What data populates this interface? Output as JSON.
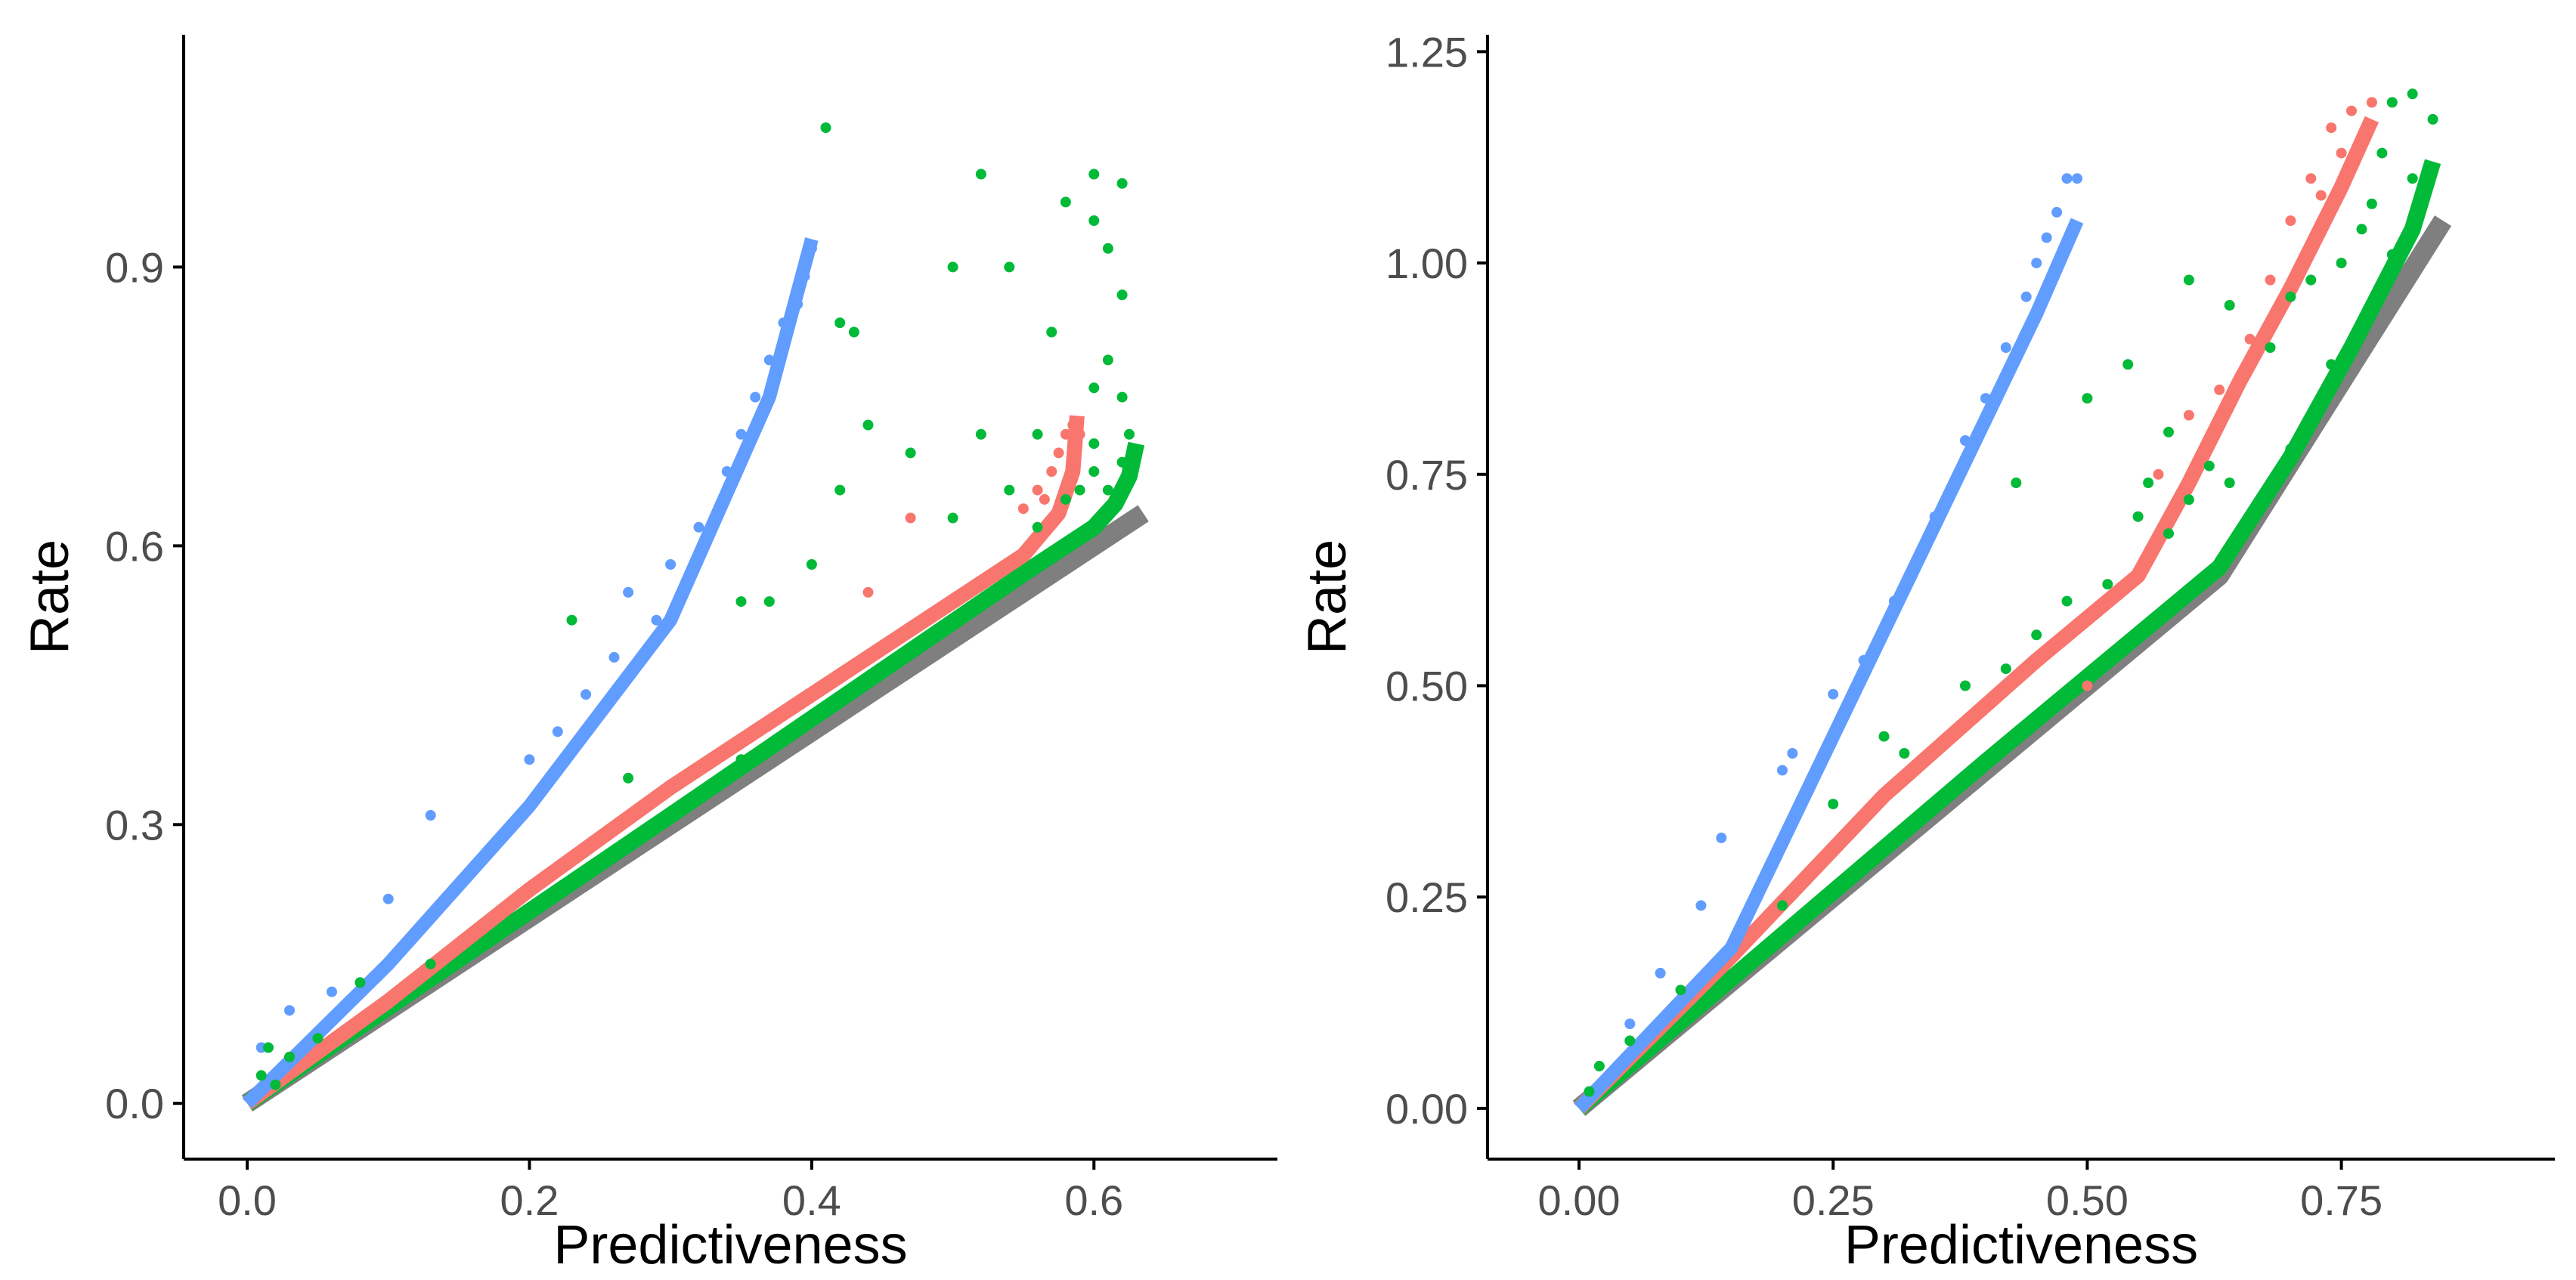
{
  "colors": {
    "blue": "#619cff",
    "red": "#f8766d",
    "green": "#00ba38",
    "gray": "#7f7f7f",
    "axis": "#000000",
    "tick_text": "#4d4d4d"
  },
  "chart_data": [
    {
      "type": "scatter",
      "title": "",
      "xlabel": "Predictiveness",
      "ylabel": "Rate",
      "xlim": [
        -0.045,
        0.73
      ],
      "ylim": [
        -0.06,
        1.15
      ],
      "x_ticks": [
        0.0,
        0.2,
        0.4,
        0.6
      ],
      "x_tick_labels": [
        "0.0",
        "0.2",
        "0.4",
        "0.6"
      ],
      "y_ticks": [
        0.0,
        0.3,
        0.6,
        0.9
      ],
      "y_tick_labels": [
        "0.0",
        "0.3",
        "0.6",
        "0.9"
      ],
      "grid": false,
      "series": [
        {
          "name": "gray",
          "kind": "line",
          "color": "gray",
          "points": [
            [
              0.0,
              0.0
            ],
            [
              0.635,
              0.635
            ]
          ]
        },
        {
          "name": "green",
          "kind": "line",
          "color": "green",
          "points": [
            [
              0.0,
              0.0
            ],
            [
              0.3,
              0.31
            ],
            [
              0.55,
              0.57
            ],
            [
              0.58,
              0.6
            ],
            [
              0.6,
              0.62
            ],
            [
              0.615,
              0.645
            ],
            [
              0.625,
              0.675
            ],
            [
              0.63,
              0.71
            ]
          ]
        },
        {
          "name": "red",
          "kind": "line",
          "color": "red",
          "points": [
            [
              0.0,
              0.0
            ],
            [
              0.1,
              0.11
            ],
            [
              0.2,
              0.23
            ],
            [
              0.3,
              0.34
            ],
            [
              0.4,
              0.44
            ],
            [
              0.5,
              0.54
            ],
            [
              0.55,
              0.59
            ],
            [
              0.575,
              0.635
            ],
            [
              0.585,
              0.68
            ],
            [
              0.588,
              0.74
            ]
          ]
        },
        {
          "name": "blue",
          "kind": "line",
          "color": "blue",
          "points": [
            [
              0.0,
              0.0
            ],
            [
              0.1,
              0.15
            ],
            [
              0.2,
              0.32
            ],
            [
              0.3,
              0.52
            ],
            [
              0.37,
              0.76
            ],
            [
              0.4,
              0.93
            ]
          ]
        },
        {
          "name": "blue-points",
          "kind": "points",
          "color": "blue",
          "points": [
            [
              0.01,
              0.06
            ],
            [
              0.03,
              0.1
            ],
            [
              0.06,
              0.12
            ],
            [
              0.1,
              0.22
            ],
            [
              0.13,
              0.31
            ],
            [
              0.17,
              0.27
            ],
            [
              0.2,
              0.37
            ],
            [
              0.22,
              0.4
            ],
            [
              0.24,
              0.44
            ],
            [
              0.26,
              0.48
            ],
            [
              0.27,
              0.55
            ],
            [
              0.29,
              0.52
            ],
            [
              0.3,
              0.58
            ],
            [
              0.32,
              0.62
            ],
            [
              0.34,
              0.68
            ],
            [
              0.35,
              0.72
            ],
            [
              0.36,
              0.76
            ],
            [
              0.37,
              0.8
            ],
            [
              0.38,
              0.84
            ],
            [
              0.39,
              0.86
            ],
            [
              0.395,
              0.89
            ],
            [
              0.4,
              0.92
            ]
          ]
        },
        {
          "name": "red-points",
          "kind": "points",
          "color": "red",
          "points": [
            [
              0.44,
              0.55
            ],
            [
              0.47,
              0.63
            ],
            [
              0.55,
              0.64
            ],
            [
              0.56,
              0.66
            ],
            [
              0.565,
              0.65
            ],
            [
              0.57,
              0.68
            ],
            [
              0.575,
              0.7
            ],
            [
              0.58,
              0.72
            ],
            [
              0.585,
              0.73
            ],
            [
              0.59,
              0.72
            ]
          ]
        },
        {
          "name": "green-points",
          "kind": "points",
          "color": "green",
          "points": [
            [
              0.41,
              1.05
            ],
            [
              0.52,
              1.0
            ],
            [
              0.6,
              1.0
            ],
            [
              0.62,
              0.99
            ],
            [
              0.58,
              0.97
            ],
            [
              0.6,
              0.95
            ],
            [
              0.61,
              0.92
            ],
            [
              0.62,
              0.87
            ],
            [
              0.5,
              0.9
            ],
            [
              0.54,
              0.9
            ],
            [
              0.42,
              0.84
            ],
            [
              0.43,
              0.83
            ],
            [
              0.57,
              0.83
            ],
            [
              0.61,
              0.8
            ],
            [
              0.6,
              0.77
            ],
            [
              0.62,
              0.76
            ],
            [
              0.44,
              0.73
            ],
            [
              0.52,
              0.72
            ],
            [
              0.56,
              0.72
            ],
            [
              0.47,
              0.7
            ],
            [
              0.6,
              0.71
            ],
            [
              0.42,
              0.66
            ],
            [
              0.54,
              0.66
            ],
            [
              0.58,
              0.65
            ],
            [
              0.5,
              0.63
            ],
            [
              0.56,
              0.62
            ],
            [
              0.4,
              0.58
            ],
            [
              0.62,
              0.69
            ],
            [
              0.625,
              0.72
            ],
            [
              0.63,
              0.7
            ],
            [
              0.6,
              0.68
            ],
            [
              0.59,
              0.66
            ],
            [
              0.61,
              0.66
            ],
            [
              0.35,
              0.54
            ],
            [
              0.37,
              0.54
            ],
            [
              0.23,
              0.52
            ],
            [
              0.27,
              0.35
            ],
            [
              0.35,
              0.37
            ],
            [
              0.05,
              0.07
            ],
            [
              0.01,
              0.03
            ],
            [
              0.02,
              0.02
            ],
            [
              0.015,
              0.06
            ],
            [
              0.03,
              0.05
            ],
            [
              0.08,
              0.13
            ],
            [
              0.13,
              0.15
            ]
          ]
        }
      ]
    },
    {
      "type": "scatter",
      "title": "",
      "xlabel": "Predictiveness",
      "ylabel": "Rate",
      "xlim": [
        -0.09,
        0.96
      ],
      "ylim": [
        -0.06,
        1.27
      ],
      "x_ticks": [
        0.0,
        0.25,
        0.5,
        0.75
      ],
      "x_tick_labels": [
        "0.00",
        "0.25",
        "0.50",
        "0.75"
      ],
      "y_ticks": [
        0.0,
        0.25,
        0.5,
        0.75,
        1.0,
        1.25
      ],
      "y_tick_labels": [
        "0.00",
        "0.25",
        "0.50",
        "0.75",
        "1.00",
        "1.25"
      ],
      "grid": false,
      "series": [
        {
          "name": "gray",
          "kind": "line",
          "color": "gray",
          "points": [
            [
              0.0,
              0.0
            ],
            [
              0.63,
              0.63
            ],
            [
              0.85,
              1.05
            ]
          ]
        },
        {
          "name": "green",
          "kind": "line",
          "color": "green",
          "points": [
            [
              0.0,
              0.0
            ],
            [
              0.4,
              0.41
            ],
            [
              0.63,
              0.64
            ],
            [
              0.7,
              0.77
            ],
            [
              0.76,
              0.9
            ],
            [
              0.82,
              1.04
            ],
            [
              0.84,
              1.12
            ]
          ]
        },
        {
          "name": "red",
          "kind": "line",
          "color": "red",
          "points": [
            [
              0.0,
              0.0
            ],
            [
              0.15,
              0.18
            ],
            [
              0.3,
              0.37
            ],
            [
              0.45,
              0.53
            ],
            [
              0.55,
              0.63
            ],
            [
              0.6,
              0.74
            ],
            [
              0.65,
              0.86
            ],
            [
              0.7,
              0.97
            ],
            [
              0.75,
              1.09
            ],
            [
              0.78,
              1.17
            ]
          ]
        },
        {
          "name": "blue",
          "kind": "line",
          "color": "blue",
          "points": [
            [
              0.0,
              0.0
            ],
            [
              0.15,
              0.19
            ],
            [
              0.25,
              0.44
            ],
            [
              0.35,
              0.69
            ],
            [
              0.45,
              0.94
            ],
            [
              0.49,
              1.05
            ]
          ]
        },
        {
          "name": "blue-points",
          "kind": "points",
          "color": "blue",
          "points": [
            [
              0.05,
              0.1
            ],
            [
              0.08,
              0.16
            ],
            [
              0.12,
              0.24
            ],
            [
              0.14,
              0.32
            ],
            [
              0.2,
              0.4
            ],
            [
              0.21,
              0.42
            ],
            [
              0.25,
              0.49
            ],
            [
              0.28,
              0.53
            ],
            [
              0.31,
              0.6
            ],
            [
              0.33,
              0.64
            ],
            [
              0.35,
              0.7
            ],
            [
              0.38,
              0.79
            ],
            [
              0.4,
              0.84
            ],
            [
              0.42,
              0.9
            ],
            [
              0.44,
              0.96
            ],
            [
              0.45,
              1.0
            ],
            [
              0.46,
              1.03
            ],
            [
              0.47,
              1.06
            ],
            [
              0.48,
              1.1
            ],
            [
              0.49,
              1.1
            ]
          ]
        },
        {
          "name": "red-points",
          "kind": "points",
          "color": "red",
          "points": [
            [
              0.5,
              0.5
            ],
            [
              0.55,
              0.7
            ],
            [
              0.57,
              0.75
            ],
            [
              0.6,
              0.82
            ],
            [
              0.63,
              0.85
            ],
            [
              0.66,
              0.91
            ],
            [
              0.68,
              0.98
            ],
            [
              0.7,
              1.05
            ],
            [
              0.72,
              1.1
            ],
            [
              0.74,
              1.16
            ],
            [
              0.76,
              1.18
            ],
            [
              0.78,
              1.19
            ],
            [
              0.75,
              1.13
            ],
            [
              0.73,
              1.08
            ]
          ]
        },
        {
          "name": "green-points",
          "kind": "points",
          "color": "green",
          "points": [
            [
              0.82,
              1.2
            ],
            [
              0.8,
              1.19
            ],
            [
              0.84,
              1.17
            ],
            [
              0.79,
              1.13
            ],
            [
              0.82,
              1.1
            ],
            [
              0.75,
              1.0
            ],
            [
              0.78,
              1.07
            ],
            [
              0.77,
              1.04
            ],
            [
              0.72,
              0.98
            ],
            [
              0.7,
              0.96
            ],
            [
              0.6,
              0.98
            ],
            [
              0.64,
              0.95
            ],
            [
              0.68,
              0.9
            ],
            [
              0.54,
              0.88
            ],
            [
              0.58,
              0.8
            ],
            [
              0.5,
              0.84
            ],
            [
              0.56,
              0.74
            ],
            [
              0.62,
              0.76
            ],
            [
              0.6,
              0.72
            ],
            [
              0.64,
              0.74
            ],
            [
              0.58,
              0.68
            ],
            [
              0.55,
              0.7
            ],
            [
              0.52,
              0.62
            ],
            [
              0.48,
              0.6
            ],
            [
              0.45,
              0.56
            ],
            [
              0.42,
              0.52
            ],
            [
              0.38,
              0.5
            ],
            [
              0.43,
              0.74
            ],
            [
              0.3,
              0.44
            ],
            [
              0.32,
              0.42
            ],
            [
              0.25,
              0.36
            ],
            [
              0.2,
              0.24
            ],
            [
              0.1,
              0.14
            ],
            [
              0.05,
              0.08
            ],
            [
              0.02,
              0.05
            ],
            [
              0.01,
              0.02
            ],
            [
              0.66,
              0.7
            ],
            [
              0.7,
              0.78
            ],
            [
              0.74,
              0.88
            ],
            [
              0.8,
              1.01
            ]
          ]
        }
      ]
    }
  ]
}
